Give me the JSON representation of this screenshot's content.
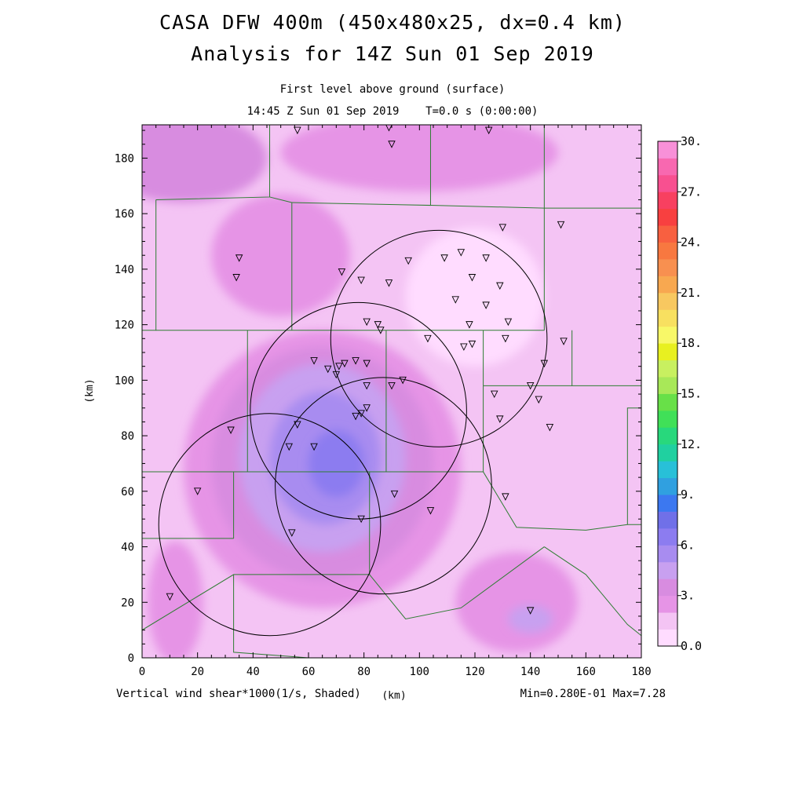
{
  "chart_data": {
    "type": "heatmap",
    "title": "CASA DFW 400m (450x480x25, dx=0.4 km)",
    "subtitle": "Analysis for 14Z Sun 01 Sep 2019",
    "level_label": "First level above ground (surface)",
    "time_label": "14:45 Z Sun 01 Sep 2019    T=0.0 s (0:00:00)",
    "xlabel": "(km)",
    "ylabel": "(km)",
    "variable_label": "Vertical wind shear*1000(1/s, Shaded)",
    "stats_label": "Min=0.280E-01 Max=7.28",
    "xlim": [
      0,
      180
    ],
    "ylim": [
      0,
      192
    ],
    "x_ticks": [
      "0",
      "20",
      "40",
      "60",
      "80",
      "100",
      "120",
      "140",
      "160",
      "180"
    ],
    "y_ticks": [
      "0",
      "20",
      "40",
      "60",
      "80",
      "100",
      "120",
      "140",
      "160",
      "180"
    ],
    "colorbar": {
      "labels": [
        "0.0",
        "3.",
        "6.",
        "9.",
        "12.",
        "15.",
        "18.",
        "21.",
        "24.",
        "27.",
        "30."
      ],
      "min": 0,
      "max": 30,
      "colors": [
        "#ffdcff",
        "#f4c4f4",
        "#e694e6",
        "#d88ce0",
        "#c8a0f0",
        "#a88cf0",
        "#8c7cf0",
        "#7070e8",
        "#3c78f0",
        "#30a0e0",
        "#28c0d8",
        "#20d0a0",
        "#28d87c",
        "#40e058",
        "#68e048",
        "#a8e858",
        "#c8f060",
        "#e8f020",
        "#f8f868",
        "#f8e060",
        "#f8c860",
        "#f8a850",
        "#f89050",
        "#f87840",
        "#f86040",
        "#f84040",
        "#f84060",
        "#f85090",
        "#f868b0",
        "#f890d8"
      ]
    },
    "field_background": "#f4c4f4",
    "field_blobs": [
      {
        "x": 65,
        "y": 68,
        "rx": 50,
        "ry": 50,
        "level": 2
      },
      {
        "x": 65,
        "y": 70,
        "rx": 40,
        "ry": 42,
        "level": 3
      },
      {
        "x": 65,
        "y": 72,
        "rx": 30,
        "ry": 34,
        "level": 4
      },
      {
        "x": 66,
        "y": 72,
        "rx": 20,
        "ry": 24,
        "level": 5
      },
      {
        "x": 70,
        "y": 70,
        "rx": 10,
        "ry": 12,
        "level": 6
      },
      {
        "x": 120,
        "y": 130,
        "rx": 25,
        "ry": 25,
        "level": 0
      },
      {
        "x": 135,
        "y": 20,
        "rx": 22,
        "ry": 18,
        "level": 2
      },
      {
        "x": 140,
        "y": 14,
        "rx": 8,
        "ry": 5,
        "level": 4
      },
      {
        "x": 15,
        "y": 180,
        "rx": 30,
        "ry": 16,
        "level": 3
      },
      {
        "x": 50,
        "y": 145,
        "rx": 25,
        "ry": 22,
        "level": 2
      },
      {
        "x": 100,
        "y": 182,
        "rx": 50,
        "ry": 14,
        "level": 2
      },
      {
        "x": 12,
        "y": 20,
        "rx": 10,
        "ry": 22,
        "level": 2
      }
    ],
    "radar_rings": [
      {
        "x": 107,
        "y": 115,
        "r": 39
      },
      {
        "x": 78,
        "y": 89,
        "r": 39
      },
      {
        "x": 87,
        "y": 62,
        "r": 39
      },
      {
        "x": 46,
        "y": 48,
        "r": 40
      }
    ],
    "county_lines": [
      [
        [
          5,
          165
        ],
        [
          5,
          118
        ],
        [
          0,
          118
        ]
      ],
      [
        [
          5,
          165
        ],
        [
          46,
          166
        ],
        [
          46,
          192
        ]
      ],
      [
        [
          46,
          166
        ],
        [
          54,
          164
        ],
        [
          54,
          118
        ]
      ],
      [
        [
          54,
          164
        ],
        [
          104,
          163
        ],
        [
          104,
          192
        ]
      ],
      [
        [
          104,
          163
        ],
        [
          145,
          162
        ],
        [
          145,
          192
        ]
      ],
      [
        [
          145,
          162
        ],
        [
          180,
          162
        ]
      ],
      [
        [
          145,
          162
        ],
        [
          145,
          118
        ]
      ],
      [
        [
          5,
          118
        ],
        [
          145,
          118
        ]
      ],
      [
        [
          38,
          118
        ],
        [
          38,
          67
        ]
      ],
      [
        [
          88,
          118
        ],
        [
          88,
          67
        ]
      ],
      [
        [
          123,
          118
        ],
        [
          123,
          67
        ]
      ],
      [
        [
          0,
          67
        ],
        [
          123,
          67
        ]
      ],
      [
        [
          33,
          67
        ],
        [
          33,
          43
        ]
      ],
      [
        [
          82,
          67
        ],
        [
          82,
          30
        ]
      ],
      [
        [
          123,
          98
        ],
        [
          155,
          98
        ],
        [
          155,
          118
        ]
      ],
      [
        [
          155,
          98
        ],
        [
          180,
          98
        ]
      ],
      [
        [
          123,
          67
        ],
        [
          135,
          47
        ],
        [
          160,
          46
        ],
        [
          175,
          48
        ],
        [
          180,
          48
        ]
      ],
      [
        [
          175,
          48
        ],
        [
          175,
          90
        ],
        [
          180,
          90
        ]
      ],
      [
        [
          0,
          43
        ],
        [
          33,
          43
        ]
      ],
      [
        [
          0,
          10
        ],
        [
          33,
          30
        ],
        [
          82,
          30
        ]
      ],
      [
        [
          33,
          30
        ],
        [
          33,
          2
        ],
        [
          60,
          0
        ]
      ],
      [
        [
          82,
          30
        ],
        [
          95,
          14
        ],
        [
          115,
          18
        ],
        [
          145,
          40
        ]
      ],
      [
        [
          145,
          40
        ],
        [
          160,
          30
        ],
        [
          175,
          12
        ],
        [
          180,
          8
        ]
      ]
    ],
    "stations": [
      [
        56,
        190
      ],
      [
        89,
        191
      ],
      [
        90,
        185
      ],
      [
        125,
        190
      ],
      [
        151,
        156
      ],
      [
        130,
        155
      ],
      [
        35,
        144
      ],
      [
        34,
        137
      ],
      [
        72,
        139
      ],
      [
        79,
        136
      ],
      [
        89,
        135
      ],
      [
        96,
        143
      ],
      [
        109,
        144
      ],
      [
        115,
        146
      ],
      [
        119,
        137
      ],
      [
        124,
        144
      ],
      [
        129,
        134
      ],
      [
        113,
        129
      ],
      [
        124,
        127
      ],
      [
        118,
        120
      ],
      [
        132,
        121
      ],
      [
        81,
        121
      ],
      [
        85,
        120
      ],
      [
        86,
        118
      ],
      [
        103,
        115
      ],
      [
        116,
        112
      ],
      [
        119,
        113
      ],
      [
        131,
        115
      ],
      [
        152,
        114
      ],
      [
        145,
        106
      ],
      [
        62,
        107
      ],
      [
        67,
        104
      ],
      [
        70,
        102
      ],
      [
        71,
        105
      ],
      [
        73,
        106
      ],
      [
        77,
        107
      ],
      [
        81,
        106
      ],
      [
        81,
        98
      ],
      [
        90,
        98
      ],
      [
        94,
        100
      ],
      [
        77,
        87
      ],
      [
        79,
        88
      ],
      [
        81,
        90
      ],
      [
        127,
        95
      ],
      [
        129,
        86
      ],
      [
        140,
        98
      ],
      [
        143,
        93
      ],
      [
        147,
        83
      ],
      [
        32,
        82
      ],
      [
        56,
        84
      ],
      [
        53,
        76
      ],
      [
        62,
        76
      ],
      [
        20,
        60
      ],
      [
        91,
        59
      ],
      [
        131,
        58
      ],
      [
        104,
        53
      ],
      [
        79,
        50
      ],
      [
        54,
        45
      ],
      [
        10,
        22
      ],
      [
        140,
        17
      ]
    ]
  }
}
